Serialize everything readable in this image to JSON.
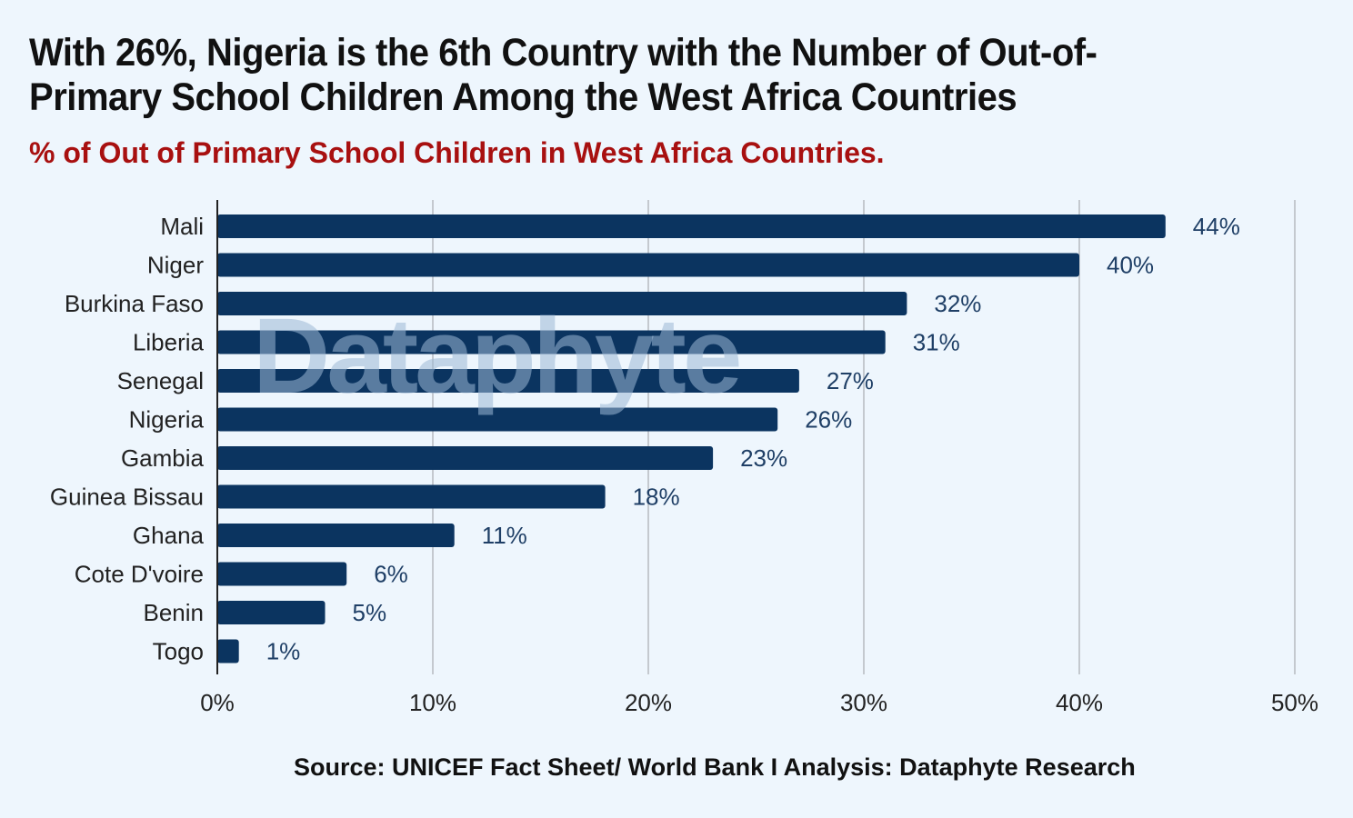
{
  "header": {
    "title": "With 26%, Nigeria is the 6th Country with the Number of Out-of- Primary School Children Among the West Africa Countries",
    "subtitle": "% of Out of Primary School Children in West Africa Countries."
  },
  "watermark": "Dataphyte",
  "source": "Source: UNICEF Fact Sheet/ World Bank I Analysis: Dataphyte Research",
  "colors": {
    "bar": "#0b3460",
    "subtitle": "#a81010",
    "background": "#eef6fd",
    "grid": "#c4c9cf"
  },
  "chart_data": {
    "type": "bar",
    "orientation": "horizontal",
    "categories": [
      "Mali",
      "Niger",
      "Burkina Faso",
      "Liberia",
      "Senegal",
      "Nigeria",
      "Gambia",
      "Guinea Bissau",
      "Ghana",
      "Cote D'voire",
      "Benin",
      "Togo"
    ],
    "values": [
      44,
      40,
      32,
      31,
      27,
      26,
      23,
      18,
      11,
      6,
      5,
      1
    ],
    "value_labels": [
      "44%",
      "40%",
      "32%",
      "31%",
      "27%",
      "26%",
      "23%",
      "18%",
      "11%",
      "6%",
      "5%",
      "1%"
    ],
    "xlim": [
      0,
      50
    ],
    "xticks": [
      0,
      10,
      20,
      30,
      40,
      50
    ],
    "xtick_labels": [
      "0%",
      "10%",
      "20%",
      "30%",
      "40%",
      "50%"
    ],
    "grid": true,
    "unit": "%"
  }
}
